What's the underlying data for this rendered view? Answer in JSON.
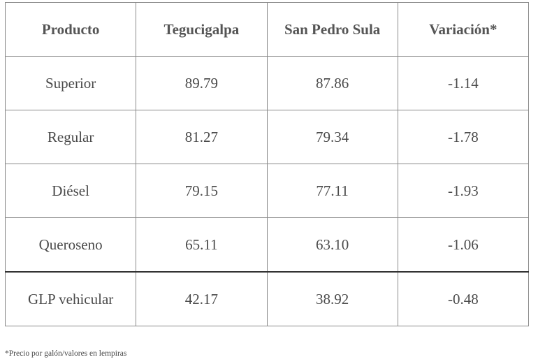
{
  "table": {
    "headers": [
      "Producto",
      "Tegucigalpa",
      "San Pedro Sula",
      "Variación*"
    ],
    "rows": [
      [
        "Superior",
        "89.79",
        "87.86",
        "-1.14"
      ],
      [
        "Regular",
        "81.27",
        "79.34",
        "-1.78"
      ],
      [
        "Diésel",
        "79.15",
        "77.11",
        "-1.93"
      ],
      [
        "Queroseno",
        "65.11",
        "63.10",
        "-1.06"
      ],
      [
        "GLP vehicular",
        "42.17",
        "38.92",
        "-0.48"
      ]
    ]
  },
  "footnote": "*Precio por galón/valores en lempiras"
}
